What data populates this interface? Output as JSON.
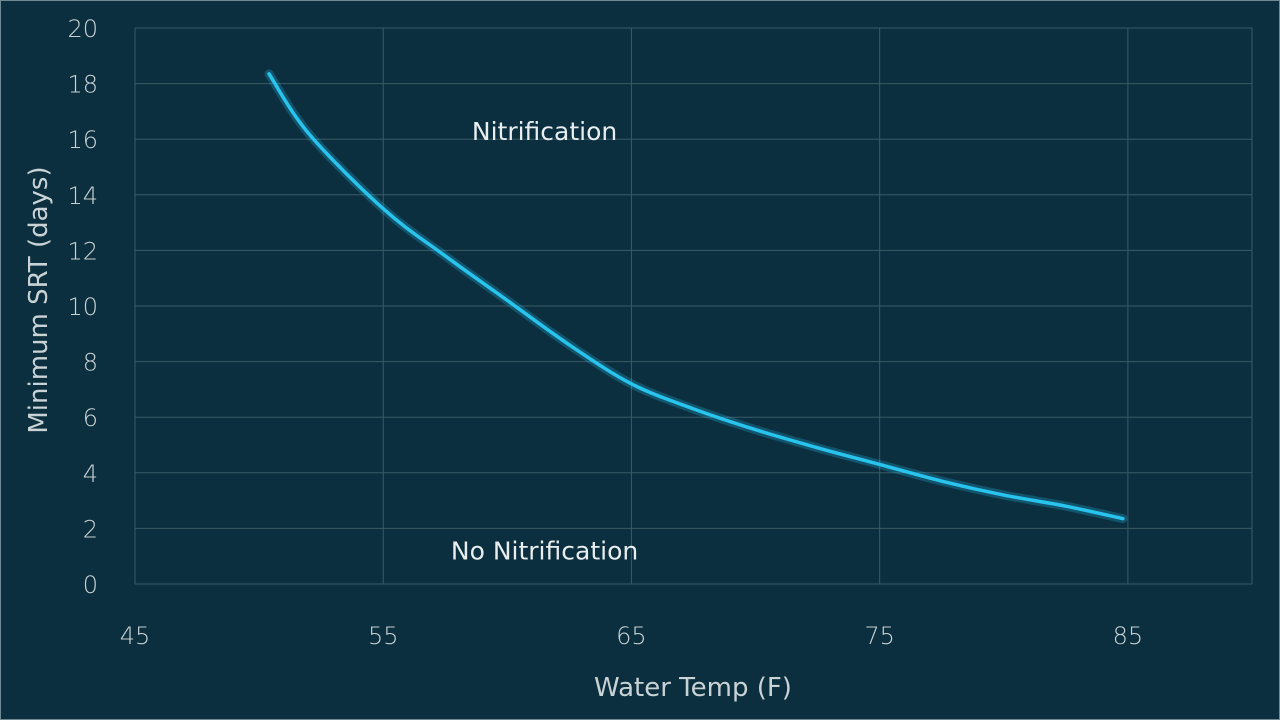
{
  "chart_data": {
    "type": "line",
    "title": "",
    "xlabel": "Water Temp (F)",
    "ylabel": "Minimum SRT (days)",
    "xlim": [
      45,
      90
    ],
    "ylim": [
      0,
      20
    ],
    "xticks": [
      45,
      55,
      65,
      75,
      85
    ],
    "yticks": [
      0,
      2,
      4,
      6,
      8,
      10,
      12,
      14,
      16,
      18,
      20
    ],
    "grid": true,
    "series": [
      {
        "name": "Minimum SRT",
        "color": "#29c4ee",
        "x": [
          50.4,
          52,
          55,
          57.5,
          60,
          62.5,
          65,
          67.5,
          70,
          72.5,
          75,
          77.5,
          80,
          82.5,
          84.8
        ],
        "y": [
          18.35,
          16.2,
          13.5,
          11.8,
          10.2,
          8.6,
          7.2,
          6.3,
          5.55,
          4.9,
          4.3,
          3.7,
          3.2,
          2.8,
          2.35
        ]
      }
    ],
    "annotations": [
      {
        "text": "Nitrification",
        "x": 61.5,
        "y": 16.3
      },
      {
        "text": "No Nitrification",
        "x": 61.5,
        "y": 1.2
      }
    ]
  }
}
